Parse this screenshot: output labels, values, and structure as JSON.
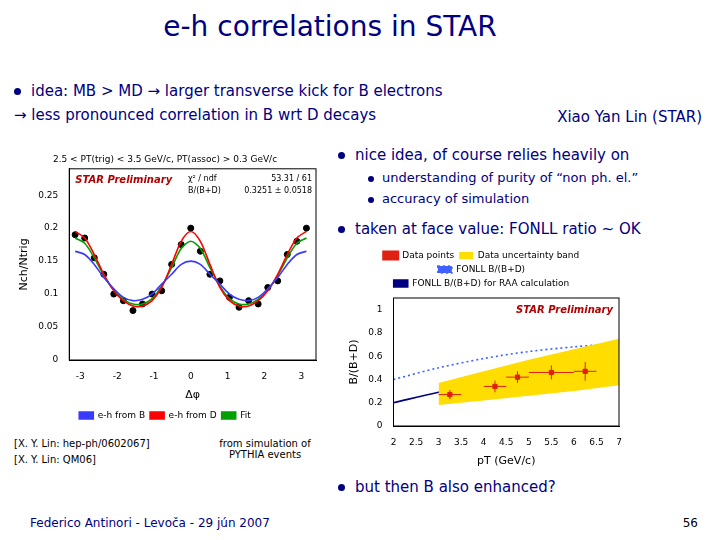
{
  "slide": {
    "title": "e-h correlations in STAR",
    "bullets": [
      "idea: MB > MD → larger transverse kick for B electrons",
      "→ less pronounced correlation in B wrt D decays"
    ],
    "author": "Xiao Yan Lin (STAR)",
    "right_bullets": [
      {
        "text": "nice idea, of course relies heavily on",
        "sub": [
          "understanding of purity of “non ph. el.”",
          "accuracy of simulation"
        ]
      },
      {
        "text": "taken at face value: FONLL ratio ~ OK",
        "sub": []
      },
      {
        "text": "but then B also enhanced?",
        "sub": []
      }
    ],
    "references": [
      "[X. Y. Lin: hep-ph/0602067]",
      "[X. Y. Lin: QM06]"
    ],
    "note": "from simulation of PYTHIA events",
    "footer": "Federico Antinori - Levoča - 29 jún 2007",
    "page": 56
  },
  "chart_data": [
    {
      "type": "line",
      "title": "2.5 < PT(trig) < 3.5 GeV/c, PT(assoc) > 0.3 GeV/c",
      "x_label": "Δφ",
      "y_label": "Nch/Ntrig",
      "annotations": [
        "STAR Preliminary"
      ],
      "stats": [
        [
          "χ² / ndf",
          "53.31 / 61"
        ],
        [
          "B/(B+D)",
          "0.3251 ± 0.0518"
        ]
      ],
      "x": [
        -3.14,
        -2.88,
        -2.62,
        -2.36,
        -2.09,
        -1.83,
        -1.57,
        -1.31,
        -1.05,
        -0.79,
        -0.52,
        -0.26,
        0,
        0.26,
        0.52,
        0.79,
        1.05,
        1.31,
        1.57,
        1.83,
        2.09,
        2.36,
        2.62,
        2.88,
        3.14
      ],
      "series": [
        {
          "name": "e-h from B",
          "color": "#3a3aff",
          "line_style": "solid",
          "values": [
            0.165,
            0.16,
            0.145,
            0.125,
            0.108,
            0.095,
            0.09,
            0.092,
            0.1,
            0.115,
            0.13,
            0.145,
            0.15,
            0.145,
            0.13,
            0.115,
            0.1,
            0.092,
            0.09,
            0.095,
            0.108,
            0.125,
            0.145,
            0.16,
            0.165
          ]
        },
        {
          "name": "e-h from D",
          "color": "#ff0000",
          "line_style": "solid",
          "values": [
            0.195,
            0.185,
            0.16,
            0.13,
            0.105,
            0.09,
            0.082,
            0.082,
            0.09,
            0.11,
            0.145,
            0.18,
            0.195,
            0.18,
            0.145,
            0.11,
            0.09,
            0.082,
            0.082,
            0.09,
            0.105,
            0.13,
            0.16,
            0.185,
            0.195
          ]
        },
        {
          "name": "Fit",
          "color": "#00a000",
          "line_style": "solid",
          "values": [
            0.185,
            0.177,
            0.155,
            0.128,
            0.106,
            0.092,
            0.085,
            0.085,
            0.093,
            0.112,
            0.14,
            0.169,
            0.18,
            0.169,
            0.14,
            0.112,
            0.093,
            0.085,
            0.085,
            0.092,
            0.106,
            0.128,
            0.155,
            0.177,
            0.185
          ]
        },
        {
          "type": "scatter",
          "color": "#000000",
          "marker": "circle",
          "values": [
            0.19,
            0.185,
            0.155,
            0.13,
            0.1,
            0.09,
            0.075,
            0.085,
            0.1,
            0.105,
            0.145,
            0.175,
            0.2,
            0.165,
            0.13,
            0.12,
            0.095,
            0.08,
            0.09,
            0.085,
            0.11,
            0.12,
            0.16,
            0.18,
            0.2
          ]
        }
      ],
      "xlim": [
        -3.3,
        3.4
      ],
      "xticks": [
        -3,
        -2,
        -1,
        0,
        1,
        2,
        3
      ],
      "ylim": [
        0,
        0.29
      ],
      "yticks": [
        0,
        0.05,
        0.1,
        0.15,
        0.2,
        0.25
      ],
      "grid": false,
      "legend": "bottom"
    },
    {
      "type": "line",
      "x_label": "pT (GeV/c)",
      "y_label": "B/(B+D)",
      "annotations": [
        "STAR Preliminary"
      ],
      "series": [
        {
          "name": "Data points",
          "type": "scatter",
          "color": "#e02010",
          "marker": "square",
          "x": [
            3.25,
            4.25,
            4.75,
            5.5,
            6.25
          ],
          "values": [
            0.27,
            0.34,
            0.42,
            0.46,
            0.47
          ],
          "x_errors": [
            0.25,
            0.25,
            0.25,
            0.5,
            0.25
          ],
          "errors": [
            0.04,
            0.05,
            0.05,
            0.06,
            0.08
          ]
        },
        {
          "name": "Data uncertainty band",
          "type": "area",
          "color": "#ffdd00",
          "x": [
            3,
            4,
            5,
            6,
            7
          ],
          "low": [
            0.18,
            0.22,
            0.26,
            0.3,
            0.35
          ],
          "high": [
            0.37,
            0.47,
            0.57,
            0.66,
            0.75
          ]
        },
        {
          "name": "FONLL B/(B+D)",
          "color": "#4060ff",
          "line_style": "dotted",
          "x": [
            2,
            3,
            4,
            5,
            6,
            7
          ],
          "values": [
            0.4,
            0.5,
            0.58,
            0.64,
            0.68,
            0.71
          ]
        },
        {
          "name": "FONLL B/(B+D) for RAA calculation",
          "color": "#000080",
          "line_style": "solid",
          "x": [
            2,
            3,
            4,
            5,
            6,
            7
          ],
          "values": [
            0.2,
            0.29,
            0.36,
            0.42,
            0.47,
            0.5
          ]
        }
      ],
      "xlim": [
        2,
        7
      ],
      "xticks": [
        2,
        2.5,
        3,
        3.5,
        4,
        4.5,
        5,
        5.5,
        6,
        6.5,
        7
      ],
      "ylim": [
        0,
        1.1
      ],
      "yticks": [
        0,
        0.2,
        0.4,
        0.6,
        0.8,
        1
      ],
      "grid": false,
      "legend": "top"
    }
  ]
}
